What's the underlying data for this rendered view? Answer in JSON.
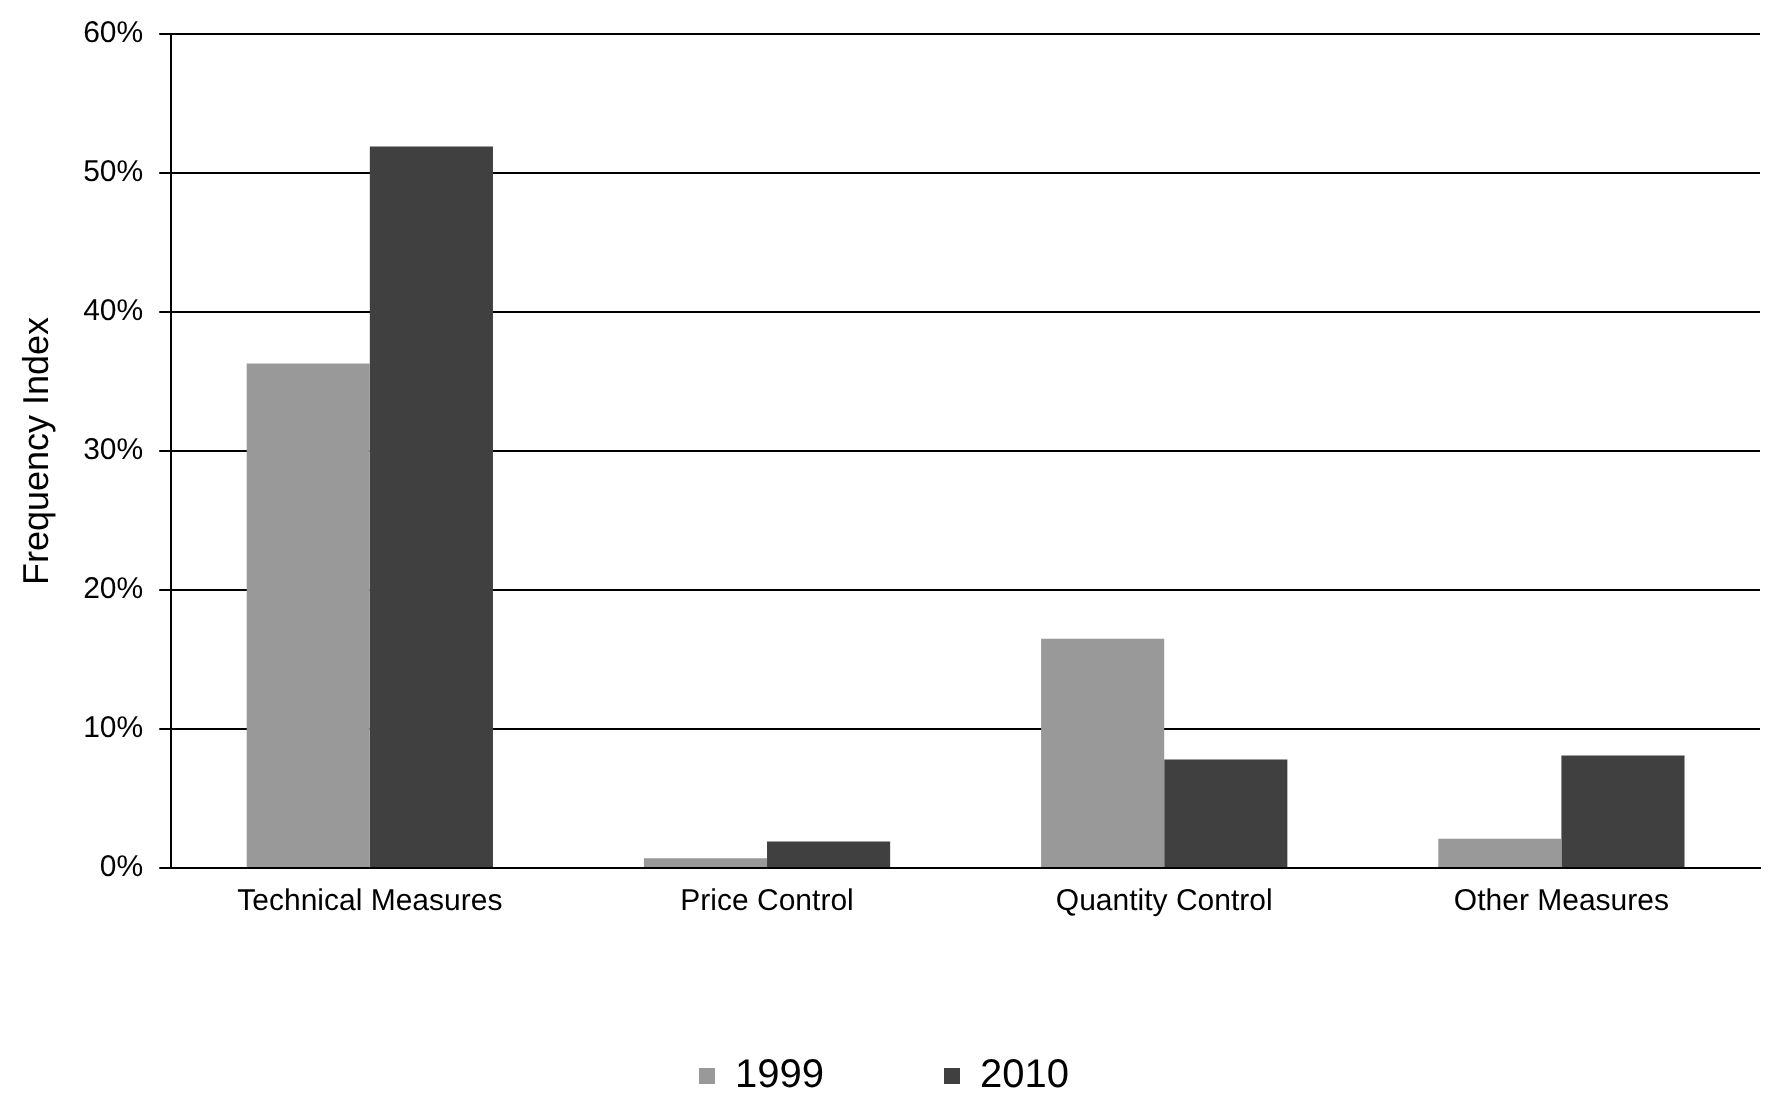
{
  "chart_data": {
    "type": "bar",
    "ylabel": "Frequency Index",
    "categories": [
      "Technical Measures",
      "Price Control",
      "Quantity Control",
      "Other Measures"
    ],
    "series": [
      {
        "name": "1999",
        "color": "#999999",
        "values": [
          36.3,
          0.7,
          16.5,
          2.1
        ]
      },
      {
        "name": "2010",
        "color": "#404040",
        "values": [
          51.9,
          1.9,
          7.8,
          8.1
        ]
      }
    ],
    "ylim": [
      0,
      60
    ],
    "yticks": [
      {
        "value": 0,
        "label": "0%"
      },
      {
        "value": 10,
        "label": "10%"
      },
      {
        "value": 20,
        "label": "20%"
      },
      {
        "value": 30,
        "label": "30%"
      },
      {
        "value": 40,
        "label": "40%"
      },
      {
        "value": 50,
        "label": "50%"
      },
      {
        "value": 60,
        "label": "60%"
      }
    ],
    "grid": "y",
    "legend": "bottom"
  }
}
